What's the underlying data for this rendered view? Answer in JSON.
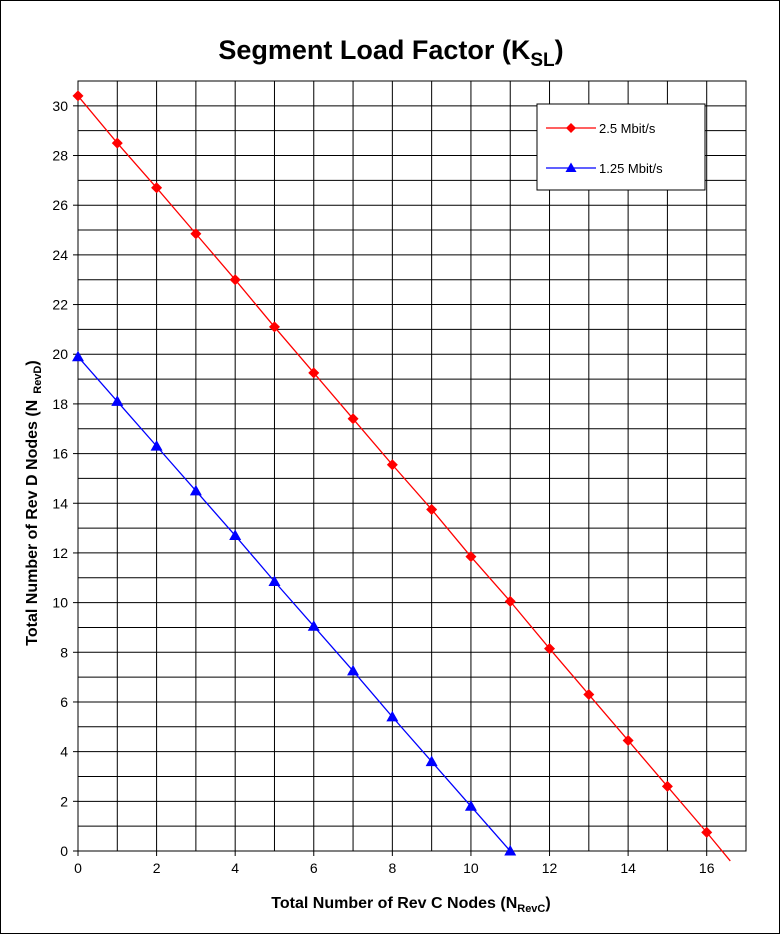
{
  "chart_data": {
    "type": "line",
    "title": {
      "main": "Segment Load Factor (K",
      "sub": "SL",
      "close": ")"
    },
    "xlabel": {
      "main": "Total Number of Rev C Nodes (N",
      "sub": "RevC",
      "close": ")"
    },
    "ylabel": {
      "main": "Total Number of Rev D Nodes (N",
      "sub": "RevD",
      "close": ")"
    },
    "xlim": [
      0,
      17
    ],
    "ylim": [
      0,
      31
    ],
    "x_ticks": [
      0,
      2,
      4,
      6,
      8,
      10,
      12,
      14,
      16
    ],
    "y_ticks": [
      0,
      2,
      4,
      6,
      8,
      10,
      12,
      14,
      16,
      18,
      20,
      22,
      24,
      26,
      28,
      30
    ],
    "grid": {
      "x_step": 1,
      "y_step": 1
    },
    "legend_position": "top-right",
    "series": [
      {
        "name": "2.5 Mbit/s",
        "color": "#ff0000",
        "marker": "diamond",
        "x": [
          0,
          1,
          2,
          3,
          4,
          5,
          6,
          7,
          8,
          9,
          10,
          11,
          12,
          13,
          14,
          15,
          16
        ],
        "y": [
          30.4,
          28.5,
          26.7,
          24.85,
          23.0,
          21.1,
          19.25,
          17.4,
          15.55,
          13.75,
          11.85,
          10.05,
          8.15,
          6.3,
          4.45,
          2.6,
          0.75
        ],
        "line_to": [
          16.6,
          -0.4
        ]
      },
      {
        "name": "1.25 Mbit/s",
        "color": "#0000ff",
        "marker": "triangle",
        "x": [
          0,
          1,
          2,
          3,
          4,
          5,
          6,
          7,
          8,
          9,
          10,
          11
        ],
        "y": [
          19.9,
          18.1,
          16.3,
          14.5,
          12.7,
          10.85,
          9.05,
          7.25,
          5.4,
          3.6,
          1.8,
          0
        ],
        "line_to": null
      }
    ]
  }
}
